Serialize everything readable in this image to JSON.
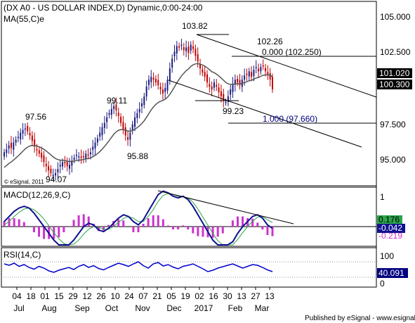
{
  "header": {
    "title": "(DX A0 - US DOLLAR INDEX,D) Dynamic,0:00-24:00",
    "ma_label": "MA(55,C)e",
    "watermark": "© eSignal, 2011"
  },
  "footer": {
    "text": "Published by eSignal - www.esignal.com"
  },
  "colors": {
    "up_candle": "#1a1a80",
    "down_candle": "#c00000",
    "ma_line": "#555555",
    "macd_line": "#101090",
    "signal_line": "#2aa44a",
    "histogram": "#cc33cc",
    "rsi_line": "#0000cc",
    "tag_price": "#000000",
    "tag_macd": "#2aa44a",
    "tag_rsi": "#000080",
    "fib_text": "#000080"
  },
  "chart_data": [
    {
      "type": "candlestick",
      "title": "(DX A0 - US DOLLAR INDEX,D) Dynamic,0:00-24:00",
      "ylim": [
        93.5,
        106.5
      ],
      "y_ticks": [
        "105.000",
        "102.500",
        "97.500",
        "95.000"
      ],
      "x_ticks": [
        "04",
        "18",
        "01",
        "15",
        "29",
        "12",
        "26",
        "10",
        "24",
        "07",
        "21",
        "05",
        "19",
        "02",
        "16",
        "30",
        "13",
        "27",
        "13"
      ],
      "month_labels": [
        "Jul",
        "Aug",
        "Sep",
        "Oct",
        "Nov",
        "Dec",
        "2017",
        "Feb",
        "Mar"
      ],
      "grid": false,
      "close_series": [
        95.8,
        96.0,
        96.3,
        96.1,
        96.5,
        96.7,
        96.9,
        97.2,
        97.4,
        97.5,
        97.3,
        97.0,
        96.6,
        96.2,
        96.0,
        95.7,
        95.4,
        95.1,
        94.8,
        94.5,
        94.3,
        94.2,
        94.3,
        94.6,
        94.9,
        95.1,
        95.0,
        94.8,
        94.9,
        95.2,
        95.4,
        95.6,
        95.5,
        95.4,
        95.5,
        95.7,
        95.6,
        95.8,
        96.2,
        96.5,
        96.8,
        97.2,
        97.6,
        97.9,
        98.3,
        98.6,
        98.9,
        99.1,
        98.8,
        98.4,
        97.9,
        97.4,
        97.0,
        96.7,
        97.2,
        97.8,
        98.3,
        98.6,
        98.9,
        99.3,
        99.8,
        100.5,
        101.0,
        101.2,
        101.0,
        100.8,
        100.6,
        100.3,
        100.0,
        100.4,
        101.0,
        101.8,
        102.5,
        103.0,
        103.4,
        103.3,
        103.5,
        103.1,
        103.3,
        102.9,
        103.5,
        103.2,
        102.7,
        102.3,
        101.8,
        101.5,
        101.2,
        100.8,
        100.5,
        100.3,
        100.8,
        100.5,
        100.1,
        99.8,
        99.5,
        99.4,
        99.8,
        100.3,
        100.7,
        101.0,
        100.8,
        100.6,
        101.0,
        101.3,
        101.4,
        101.6,
        101.2,
        101.7,
        101.9,
        101.6,
        101.9,
        102.0,
        101.6,
        101.4,
        101.0,
        100.3
      ],
      "ma_label": "MA(55,C)e",
      "high_low_labels": [
        "103.82",
        "102.26",
        "99.11",
        "97.56",
        "99.23",
        "95.88",
        "94.07"
      ],
      "fib_labels": [
        "0.000 (102.250)",
        "1.000 (97.660)"
      ],
      "value_tags": [
        "101.020",
        "100.300"
      ]
    },
    {
      "type": "line",
      "title": "MACD(12,26,9,C)",
      "y_ticks": [
        "1"
      ],
      "series": [
        {
          "name": "MACD",
          "values": [
            0.15,
            0.3,
            0.45,
            0.55,
            0.6,
            0.55,
            0.4,
            0.2,
            0.0,
            -0.2,
            -0.4,
            -0.55,
            -0.6,
            -0.55,
            -0.4,
            -0.2,
            0.0,
            0.1,
            0.05,
            -0.1,
            -0.15,
            -0.05,
            0.1,
            0.25,
            0.35,
            0.3,
            0.15,
            0.05,
            0.2,
            0.45,
            0.7,
            0.95,
            1.05,
            1.0,
            0.9,
            0.85,
            0.9,
            0.8,
            0.6,
            0.35,
            0.1,
            -0.15,
            -0.4,
            -0.6,
            -0.7,
            -0.65,
            -0.45,
            -0.2,
            0.0,
            0.15,
            0.3,
            0.35,
            0.25,
            0.05,
            -0.05
          ]
        },
        {
          "name": "Signal",
          "values": [
            0.05,
            0.15,
            0.3,
            0.42,
            0.52,
            0.55,
            0.5,
            0.38,
            0.22,
            0.02,
            -0.18,
            -0.36,
            -0.5,
            -0.56,
            -0.52,
            -0.4,
            -0.22,
            -0.08,
            0.0,
            -0.02,
            -0.08,
            -0.08,
            0.0,
            0.12,
            0.24,
            0.3,
            0.25,
            0.15,
            0.15,
            0.3,
            0.5,
            0.75,
            0.92,
            0.98,
            0.95,
            0.9,
            0.88,
            0.85,
            0.72,
            0.52,
            0.28,
            0.04,
            -0.2,
            -0.42,
            -0.58,
            -0.64,
            -0.56,
            -0.38,
            -0.18,
            0.0,
            0.16,
            0.28,
            0.3,
            0.2,
            0.12
          ]
        }
      ],
      "value_tags": [
        "0.176",
        "-0.042",
        "-0.219"
      ]
    },
    {
      "type": "line",
      "title": "RSI(14,C)",
      "y_ticks": [
        "100",
        "0"
      ],
      "series": [
        {
          "name": "RSI",
          "values": [
            62,
            58,
            64,
            55,
            60,
            52,
            47,
            55,
            50,
            42,
            38,
            44,
            48,
            52,
            46,
            55,
            60,
            52,
            57,
            49,
            45,
            52,
            58,
            64,
            60,
            55,
            62,
            68,
            57,
            50,
            62,
            66,
            56,
            60,
            53,
            48,
            55,
            58,
            62,
            55,
            48,
            40,
            44,
            50,
            54,
            58,
            62,
            56,
            50,
            55,
            60,
            58,
            52,
            45,
            40
          ]
        }
      ],
      "value_tags": [
        "40.091"
      ]
    }
  ]
}
